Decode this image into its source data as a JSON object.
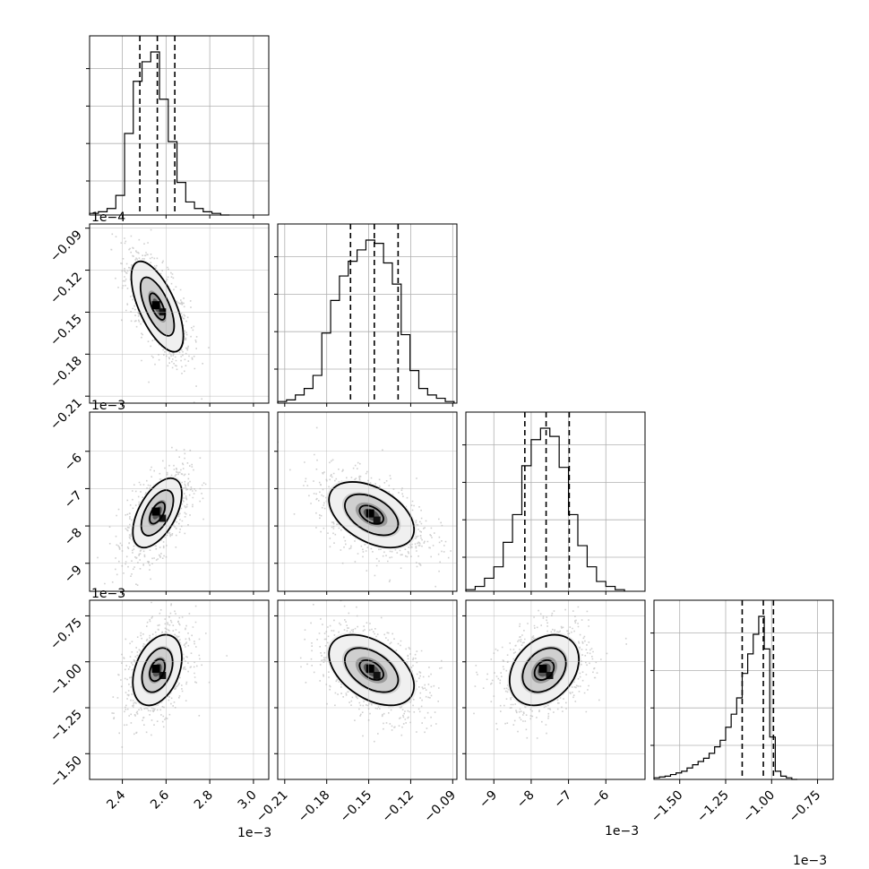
{
  "chart_data": {
    "type": "corner",
    "title": "",
    "parameters": [
      {
        "index": 0,
        "range": [
          2.25,
          3.07
        ],
        "quantiles": [
          2.48,
          2.56,
          2.64
        ],
        "ticks": [
          {
            "value": 2.4,
            "label": "2.4"
          },
          {
            "value": 2.6,
            "label": "2.6"
          },
          {
            "value": 2.8,
            "label": "2.8"
          },
          {
            "value": 3.0,
            "label": "3.0"
          }
        ],
        "exponent": "1e−3",
        "hist_edges": [
          2.25,
          2.29,
          2.33,
          2.37,
          2.41,
          2.45,
          2.49,
          2.53,
          2.57,
          2.61,
          2.65,
          2.69,
          2.73,
          2.77,
          2.81,
          2.85,
          2.89
        ],
        "hist_counts": [
          0.01,
          0.02,
          0.04,
          0.12,
          0.5,
          0.82,
          0.94,
          1.0,
          0.71,
          0.45,
          0.2,
          0.08,
          0.04,
          0.02,
          0.01,
          0.0
        ]
      },
      {
        "index": 1,
        "range": [
          -0.215,
          -0.087
        ],
        "quantiles": [
          -0.163,
          -0.146,
          -0.129
        ],
        "ticks": [
          {
            "value": -0.21,
            "label": "−0.21"
          },
          {
            "value": -0.18,
            "label": "−0.18"
          },
          {
            "value": -0.15,
            "label": "−0.15"
          },
          {
            "value": -0.12,
            "label": "−0.12"
          },
          {
            "value": -0.09,
            "label": "−0.09"
          }
        ],
        "exponent": "1e−4",
        "hist_edges": [
          -0.215,
          -0.2087,
          -0.2024,
          -0.1961,
          -0.1898,
          -0.1835,
          -0.1772,
          -0.1709,
          -0.1646,
          -0.1583,
          -0.152,
          -0.1457,
          -0.1394,
          -0.1331,
          -0.1268,
          -0.1205,
          -0.1142,
          -0.1079,
          -0.1016,
          -0.0953,
          -0.089
        ],
        "hist_counts": [
          0.01,
          0.02,
          0.05,
          0.09,
          0.17,
          0.43,
          0.63,
          0.78,
          0.87,
          0.94,
          1.0,
          0.98,
          0.86,
          0.73,
          0.42,
          0.2,
          0.09,
          0.05,
          0.03,
          0.01
        ]
      },
      {
        "index": 2,
        "range": [
          -9.75,
          -4.95
        ],
        "quantiles": [
          -8.17,
          -7.6,
          -6.98
        ],
        "ticks": [
          {
            "value": -9,
            "label": "−9"
          },
          {
            "value": -8,
            "label": "−8"
          },
          {
            "value": -7,
            "label": "−7"
          },
          {
            "value": -6,
            "label": "−6"
          }
        ],
        "exponent": "1e−3",
        "hist_edges": [
          -9.75,
          -9.5,
          -9.25,
          -9.0,
          -8.75,
          -8.5,
          -8.25,
          -8.0,
          -7.75,
          -7.5,
          -7.25,
          -7.0,
          -6.75,
          -6.5,
          -6.25,
          -6.0,
          -5.75,
          -5.5
        ],
        "hist_counts": [
          0.01,
          0.03,
          0.08,
          0.15,
          0.3,
          0.47,
          0.77,
          0.93,
          1.0,
          0.95,
          0.76,
          0.47,
          0.28,
          0.15,
          0.06,
          0.03,
          0.01
        ]
      },
      {
        "index": 3,
        "range": [
          -1.64,
          -0.665
        ],
        "quantiles": [
          -1.16,
          -1.045,
          -0.99
        ],
        "ticks": [
          {
            "value": -1.5,
            "label": "−1.50"
          },
          {
            "value": -1.25,
            "label": "−1.25"
          },
          {
            "value": -1.0,
            "label": "−1.00"
          },
          {
            "value": -0.75,
            "label": "−0.75"
          }
        ],
        "exponent": "1e−3",
        "hist_edges": [
          -1.64,
          -1.61,
          -1.58,
          -1.55,
          -1.52,
          -1.49,
          -1.46,
          -1.43,
          -1.4,
          -1.37,
          -1.34,
          -1.31,
          -1.28,
          -1.25,
          -1.22,
          -1.19,
          -1.16,
          -1.13,
          -1.1,
          -1.07,
          -1.04,
          -1.01,
          -0.98,
          -0.95,
          -0.92,
          -0.89,
          -0.86
        ],
        "hist_counts": [
          0.01,
          0.015,
          0.02,
          0.03,
          0.04,
          0.05,
          0.07,
          0.09,
          0.11,
          0.13,
          0.16,
          0.2,
          0.24,
          0.32,
          0.4,
          0.5,
          0.65,
          0.77,
          0.89,
          1.0,
          0.8,
          0.26,
          0.05,
          0.02,
          0.01,
          0.0
        ]
      }
    ],
    "pairs": [
      {
        "row": 1,
        "col": 0,
        "mean": [
          2.56,
          -0.146
        ],
        "sd": [
          0.07,
          0.019
        ],
        "corr": -0.65,
        "contours": [
          [
            0.08,
            0.5
          ],
          [
            0.55,
            1.1
          ],
          [
            1.1,
            1.7
          ]
        ]
      },
      {
        "row": 2,
        "col": 0,
        "mean": [
          2.56,
          -7.65
        ],
        "sd": [
          0.07,
          0.58
        ],
        "corr": 0.55,
        "contours": [
          [
            0.04,
            0.5
          ],
          [
            0.5,
            1.05
          ],
          [
            1.05,
            1.6
          ]
        ]
      },
      {
        "row": 2,
        "col": 1,
        "mean": [
          -0.148,
          -7.7
        ],
        "sd": [
          0.019,
          0.55
        ],
        "corr": -0.45,
        "contours": [
          [
            0.2,
            0.45
          ],
          [
            0.55,
            1.0
          ],
          [
            1.05,
            1.6
          ]
        ]
      },
      {
        "row": 3,
        "col": 0,
        "mean": [
          2.56,
          -1.045
        ],
        "sd": [
          0.07,
          0.12
        ],
        "corr": 0.35,
        "contours": [
          [
            0.04,
            0.5
          ],
          [
            0.5,
            1.0
          ],
          [
            1.0,
            1.6
          ]
        ]
      },
      {
        "row": 3,
        "col": 1,
        "mean": [
          -0.148,
          -1.045
        ],
        "sd": [
          0.019,
          0.12
        ],
        "corr": -0.45,
        "contours": [
          [
            0.2,
            0.45
          ],
          [
            0.55,
            1.0
          ],
          [
            1.05,
            1.6
          ]
        ]
      },
      {
        "row": 3,
        "col": 2,
        "mean": [
          -7.65,
          -1.045
        ],
        "sd": [
          0.58,
          0.12
        ],
        "corr": 0.3,
        "contours": [
          [
            0.2,
            0.45
          ],
          [
            0.55,
            1.0
          ],
          [
            1.05,
            1.6
          ]
        ]
      }
    ],
    "grid": true,
    "colors": {
      "line": "#000000",
      "grid": "#b0b0b0",
      "points": "#555555"
    }
  }
}
